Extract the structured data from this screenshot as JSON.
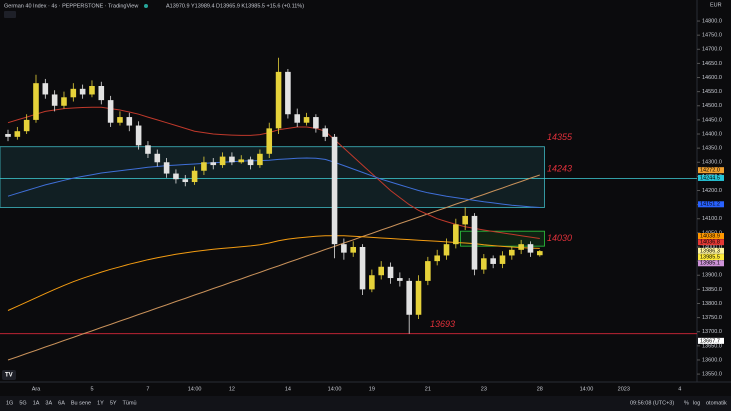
{
  "chart_data": {
    "type": "candlestick",
    "title": "German 40 Index · 4s · PEPPERSTONE · TradingView",
    "subtitle": "A13970.9 Y13989.4 D13965.9 K13985.5 +15.6 (+0.11%)",
    "currency": "EUR",
    "up_color": "#e6d23a",
    "down_color": "#e2e2e2",
    "categories": [
      null,
      null,
      null,
      "Ara",
      null,
      null,
      null,
      null,
      null,
      "5",
      null,
      null,
      null,
      null,
      null,
      "7",
      null,
      null,
      null,
      null,
      "14:00",
      null,
      null,
      null,
      "12",
      null,
      null,
      null,
      null,
      null,
      "14",
      null,
      null,
      null,
      null,
      "14:00",
      null,
      null,
      null,
      "19",
      null,
      null,
      null,
      null,
      null,
      "21",
      null,
      null,
      null,
      null,
      null,
      "23",
      null,
      null,
      null,
      null,
      null,
      "28",
      null,
      null,
      null,
      null,
      "14:00",
      null,
      null,
      null,
      "2023",
      null,
      null,
      null,
      null,
      null,
      "4"
    ],
    "open": [
      14400,
      14390,
      14410,
      14450,
      14580,
      14540,
      14500,
      14530,
      14560,
      14540,
      14570,
      14520,
      14440,
      14460,
      14430,
      14360,
      14330,
      14300,
      14260,
      14240,
      14230,
      14270,
      14300,
      14290,
      14320,
      14300,
      14310,
      14290,
      14330,
      14420,
      14620,
      14470,
      14440,
      14460,
      14420,
      14390,
      14010,
      13980,
      14000,
      13850,
      13900,
      13930,
      13890,
      13880,
      13760,
      13880,
      13950,
      13970,
      14010,
      14080,
      14110,
      13920,
      13960,
      13940,
      13970,
      13990,
      14010,
      13970.9,
      null,
      null,
      null,
      null,
      null,
      null,
      null,
      null,
      null,
      null,
      null,
      null,
      null,
      null,
      null
    ],
    "high": [
      14415,
      14425,
      14470,
      14610,
      14595,
      14555,
      14550,
      14580,
      14575,
      14590,
      14585,
      14535,
      14480,
      14475,
      14445,
      14375,
      14345,
      14315,
      14275,
      14255,
      14285,
      14320,
      14315,
      14335,
      14335,
      14325,
      14320,
      14345,
      14440,
      14670,
      14630,
      14490,
      14475,
      14470,
      14430,
      14400,
      14030,
      14020,
      14010,
      13920,
      13950,
      13945,
      13910,
      13890,
      13900,
      13965,
      13990,
      14030,
      14100,
      14140,
      14120,
      13975,
      13970,
      13985,
      14000,
      14025,
      14020,
      13989.4,
      null,
      null,
      null,
      null,
      null,
      null,
      null,
      null,
      null,
      null,
      null,
      null,
      null,
      null,
      null
    ],
    "low": [
      14375,
      14380,
      14400,
      14440,
      14525,
      14480,
      14490,
      14515,
      14525,
      14530,
      14505,
      14425,
      14430,
      14410,
      14345,
      14315,
      14285,
      14245,
      14225,
      14215,
      14220,
      14255,
      14275,
      14280,
      14290,
      14295,
      14275,
      14280,
      14315,
      14400,
      14455,
      14425,
      14430,
      14405,
      14375,
      13960,
      13955,
      13965,
      13830,
      13840,
      13885,
      13870,
      13860,
      13693,
      13745,
      13865,
      13935,
      13955,
      13995,
      14060,
      13900,
      13905,
      13925,
      13925,
      13955,
      13975,
      13965,
      13965.9,
      null,
      null,
      null,
      null,
      null,
      null,
      null,
      null,
      null,
      null,
      null,
      null,
      null,
      null,
      null
    ],
    "close": [
      14390,
      14410,
      14450,
      14580,
      14540,
      14500,
      14530,
      14560,
      14540,
      14570,
      14520,
      14440,
      14460,
      14430,
      14360,
      14330,
      14300,
      14260,
      14240,
      14230,
      14270,
      14300,
      14290,
      14320,
      14300,
      14310,
      14290,
      14330,
      14420,
      14620,
      14470,
      14440,
      14460,
      14420,
      14390,
      14010,
      13980,
      14000,
      13850,
      13900,
      13930,
      13890,
      13880,
      13760,
      13880,
      13950,
      13970,
      14010,
      14080,
      14110,
      13920,
      13960,
      13940,
      13970,
      13990,
      14010,
      13980,
      13985.5,
      null,
      null,
      null,
      null,
      null,
      null,
      null,
      null,
      null,
      null,
      null,
      null,
      null,
      null,
      null
    ],
    "series": [
      {
        "color": "#c8915a",
        "values": [
          13600,
          13611,
          13623,
          13634,
          13646,
          13657,
          13669,
          13680,
          13692,
          13703,
          13715,
          13726,
          13738,
          13749,
          13761,
          13772,
          13784,
          13795,
          13807,
          13818,
          13830,
          13841,
          13853,
          13864,
          13876,
          13887,
          13899,
          13910,
          13922,
          13933,
          13945,
          13956,
          13968,
          13979,
          13991,
          14002,
          14014,
          14025,
          14037,
          14048,
          14060,
          14071,
          14083,
          14094,
          14106,
          14117,
          14129,
          14140,
          14152,
          14163,
          14175,
          14186,
          14198,
          14209,
          14221,
          14232,
          14244,
          14255,
          null,
          null,
          null,
          null,
          null,
          null,
          null,
          null,
          null,
          null,
          null,
          null,
          null,
          null,
          null
        ]
      },
      {
        "color": "#f39c12",
        "values": [
          13775,
          13790,
          13805,
          13820,
          13835,
          13850,
          13864,
          13877,
          13889,
          13900,
          13911,
          13921,
          13930,
          13939,
          13947,
          13955,
          13962,
          13968,
          13974,
          13979,
          13984,
          13988,
          13992,
          13995,
          13998,
          14001,
          14004,
          14008,
          14014,
          14022,
          14028,
          14032,
          14035,
          14038,
          14040,
          14040,
          14040,
          14038,
          14036,
          14034,
          14032,
          14030,
          14028,
          14026,
          14024,
          14022,
          14020,
          14018,
          14016,
          14014,
          14012,
          14008,
          14005,
          14002,
          14000,
          13998,
          13996,
          13995,
          null,
          null,
          null,
          null,
          null,
          null,
          null,
          null,
          null,
          null,
          null,
          null,
          null,
          null,
          null
        ]
      },
      {
        "color": "#c0392b",
        "values": [
          14440,
          14450,
          14460,
          14470,
          14480,
          14485,
          14490,
          14492,
          14494,
          14495,
          14495,
          14490,
          14485,
          14478,
          14470,
          14460,
          14450,
          14440,
          14430,
          14420,
          14410,
          14405,
          14400,
          14398,
          14396,
          14395,
          14395,
          14398,
          14405,
          14415,
          14420,
          14425,
          14425,
          14420,
          14410,
          14380,
          14350,
          14320,
          14290,
          14260,
          14230,
          14200,
          14175,
          14150,
          14130,
          14115,
          14100,
          14090,
          14080,
          14072,
          14066,
          14060,
          14055,
          14050,
          14045,
          14040,
          14035,
          14030,
          null,
          null,
          null,
          null,
          null,
          null,
          null,
          null,
          null,
          null,
          null,
          null,
          null,
          null,
          null
        ]
      },
      {
        "color": "#3f6fd8",
        "values": [
          14180,
          14190,
          14200,
          14210,
          14220,
          14228,
          14236,
          14244,
          14250,
          14256,
          14262,
          14266,
          14270,
          14274,
          14278,
          14282,
          14285,
          14288,
          14290,
          14292,
          14294,
          14296,
          14298,
          14300,
          14302,
          14304,
          14305,
          14306,
          14307,
          14310,
          14312,
          14314,
          14315,
          14314,
          14310,
          14300,
          14288,
          14276,
          14264,
          14252,
          14240,
          14230,
          14220,
          14210,
          14200,
          14192,
          14186,
          14180,
          14175,
          14170,
          14165,
          14160,
          14156,
          14152,
          14148,
          14145,
          14142,
          14140,
          null,
          null,
          null,
          null,
          null,
          null,
          null,
          null,
          null,
          null,
          null,
          null,
          null,
          null,
          null
        ]
      }
    ],
    "zones": [
      {
        "from": 14140,
        "to": 14355,
        "start": 0,
        "end": 57,
        "color": "#3fb8c2"
      },
      {
        "from": 14003,
        "to": 14056,
        "start": 49,
        "end": 57,
        "color": "#2ecc40"
      }
    ],
    "levels": [
      {
        "value": 14355,
        "label": "14355",
        "color": "#e0303a"
      },
      {
        "value": 14243,
        "label": "14243",
        "color": "#e0303a",
        "line_color": "#3fd0d8"
      },
      {
        "value": 14030,
        "label": "14030",
        "color": "#e0303a"
      },
      {
        "value": 13693,
        "label": "13693",
        "color": "#e0303a",
        "line_color": "#d8283a"
      }
    ],
    "price_tags": [
      {
        "value": 14272.0,
        "label": "14272.0",
        "color": "#f0a030"
      },
      {
        "value": 14244.5,
        "label": "14244.5",
        "color": "#26c6da"
      },
      {
        "value": 14151.2,
        "label": "14151.2",
        "color": "#2962ff"
      },
      {
        "value": 14038.9,
        "label": "14038.9",
        "color": "#ff9800"
      },
      {
        "value": 14036.8,
        "label": "14036.8",
        "color": "#e53935"
      },
      {
        "value": 13986.3,
        "label": "13986.3",
        "color": "#fff59d"
      },
      {
        "value": 13985.5,
        "label": "13985.5",
        "color": "#ffeb3b"
      },
      {
        "value": 13985.1,
        "label": "13985.1",
        "color": "#ce93d8"
      },
      {
        "value": 13667.7,
        "label": "13667.7",
        "color": "#ffffff"
      }
    ],
    "ylim": [
      13522,
      14832
    ],
    "yticks": [
      {
        "value": 13550,
        "label": "13550.0"
      },
      {
        "value": 13600,
        "label": "13600.0"
      },
      {
        "value": 13650,
        "label": "13650.0"
      },
      {
        "value": 13700,
        "label": "13700.0"
      },
      {
        "value": 13750,
        "label": "13750.0"
      },
      {
        "value": 13800,
        "label": "13800.0"
      },
      {
        "value": 13850,
        "label": "13850.0"
      },
      {
        "value": 13900,
        "label": "13900.0"
      },
      {
        "value": 13950,
        "label": "13950.0"
      },
      {
        "value": 14000,
        "label": "14000.0"
      },
      {
        "value": 14050,
        "label": "14050.0"
      },
      {
        "value": 14100,
        "label": "14100.0"
      },
      {
        "value": 14150,
        "label": "14150.0"
      },
      {
        "value": 14200,
        "label": "14200.0"
      },
      {
        "value": 14250,
        "label": "14250.0"
      },
      {
        "value": 14300,
        "label": "14300.0"
      },
      {
        "value": 14350,
        "label": "14350.0"
      },
      {
        "value": 14400,
        "label": "14400.0"
      },
      {
        "value": 14450,
        "label": "14450.0"
      },
      {
        "value": 14500,
        "label": "14500.0"
      },
      {
        "value": 14550,
        "label": "14550.0"
      },
      {
        "value": 14600,
        "label": "14600.0"
      },
      {
        "value": 14650,
        "label": "14650.0"
      },
      {
        "value": 14700,
        "label": "14700.0"
      },
      {
        "value": 14750,
        "label": "14750.0"
      },
      {
        "value": 14800,
        "label": "14800.0"
      }
    ]
  },
  "toolbar": {
    "ranges": [
      "1G",
      "5G",
      "1A",
      "3A",
      "6A",
      "Bu sene",
      "1Y",
      "5Y",
      "Tümü"
    ],
    "clock": "09:56:08 (UTC+3)",
    "options": [
      "%",
      "log",
      "otomatik"
    ]
  }
}
